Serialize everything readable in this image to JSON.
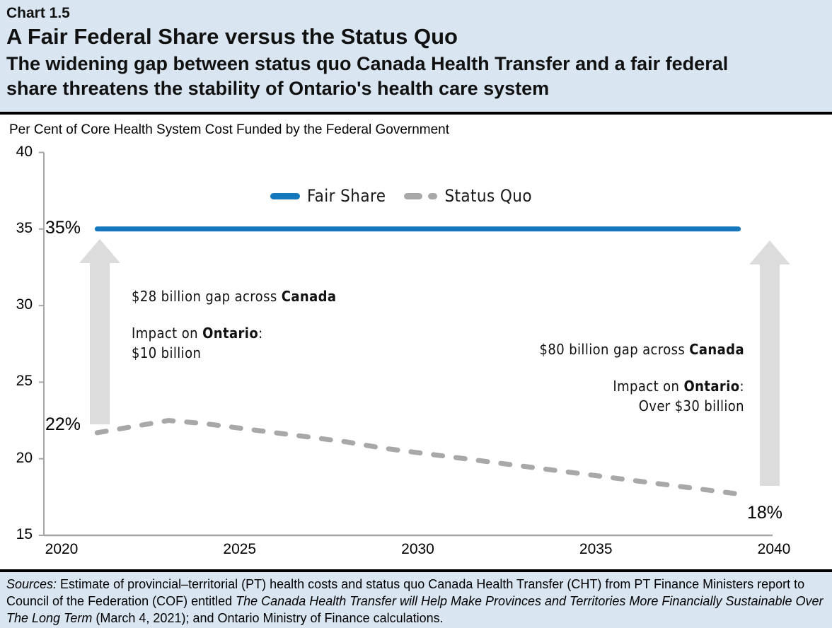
{
  "header": {
    "chart_number": "Chart 1.5",
    "title": "A Fair Federal Share versus the Status Quo",
    "subtitle": "The widening gap between status quo Canada Health Transfer and a fair federal share threatens the stability of Ontario's health care system"
  },
  "chart": {
    "axis_note": "Per Cent of Core Health System Cost Funded by the Federal Government",
    "legend": [
      {
        "label": "Fair Share",
        "color": "#1577bc",
        "style": "solid"
      },
      {
        "label": "Status Quo",
        "color": "#a8a8a8",
        "style": "dashed"
      }
    ],
    "labels": {
      "fair_start": "35%",
      "status_start": "22%",
      "status_end": "18%"
    },
    "annotations": {
      "left_gap": {
        "pre": "$28 billion gap across ",
        "bold": "Canada"
      },
      "left_impact": {
        "pre": "Impact on ",
        "bold": "Ontario",
        "post": ":"
      },
      "left_impact_value": "$10 billion",
      "right_gap": {
        "pre": "$80 billion gap across ",
        "bold": "Canada"
      },
      "right_impact": {
        "pre": "Impact on ",
        "bold": "Ontario",
        "post": ":"
      },
      "right_impact_value": "Over $30 billion"
    }
  },
  "chart_data": {
    "type": "line",
    "title": "A Fair Federal Share versus the Status Quo",
    "ylabel": "Per Cent of Core Health System Cost Funded by the Federal Government",
    "x": [
      2021,
      2022,
      2023,
      2024,
      2025,
      2026,
      2027,
      2028,
      2029,
      2030,
      2031,
      2032,
      2033,
      2034,
      2035,
      2036,
      2037,
      2038,
      2039
    ],
    "series": [
      {
        "name": "Fair Share",
        "values": [
          35,
          35,
          35,
          35,
          35,
          35,
          35,
          35,
          35,
          35,
          35,
          35,
          35,
          35,
          35,
          35,
          35,
          35,
          35
        ]
      },
      {
        "name": "Status Quo",
        "values": [
          21.7,
          22.1,
          22.5,
          22.3,
          22.0,
          21.7,
          21.4,
          21.1,
          20.7,
          20.4,
          20.1,
          19.8,
          19.5,
          19.2,
          18.9,
          18.6,
          18.3,
          18.0,
          17.7
        ]
      }
    ],
    "xticks": [
      2020,
      2025,
      2030,
      2035,
      2040
    ],
    "yticks": [
      15,
      20,
      25,
      30,
      35,
      40
    ],
    "xlim": [
      2020,
      2040
    ],
    "ylim": [
      15,
      40
    ],
    "grid": false,
    "legend_position": "top-center"
  },
  "footer": {
    "sources_segments": [
      {
        "text": "Sources:",
        "italic": true
      },
      {
        "text": " Estimate of provincial–territorial (PT) health costs and status quo Canada Health Transfer (CHT) from PT Finance Ministers report to Council of the Federation (COF) entitled ",
        "italic": false
      },
      {
        "text": "The Canada Health Transfer will Help Make Provinces and Territories More Financially Sustainable Over The Long Term",
        "italic": true
      },
      {
        "text": " (March 4, 2021); and Ontario Ministry of Finance calculations.",
        "italic": false
      }
    ]
  },
  "colors": {
    "fair_share_line": "#1577bc",
    "status_quo_line": "#a8a8a8",
    "arrow": "#dcdcdc",
    "axis": "#a6a6a6",
    "band_background": "#d9e6f2",
    "divider": "#000000"
  }
}
